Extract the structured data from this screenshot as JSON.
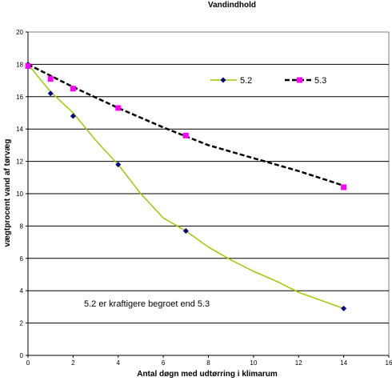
{
  "chart_data": {
    "type": "line",
    "title": "Vandindhold",
    "xlabel": "Antal døgn med udtørring i klimarum",
    "ylabel": "vægtprocent vand af tørvæg",
    "xlim": [
      0,
      16
    ],
    "ylim": [
      0,
      20
    ],
    "xticks": [
      0,
      2,
      4,
      6,
      8,
      10,
      12,
      14,
      16
    ],
    "yticks": [
      0,
      2,
      4,
      6,
      8,
      10,
      12,
      14,
      16,
      18,
      20
    ],
    "grid": "horizontal",
    "legend_position": "top-right",
    "series": [
      {
        "name": "5.2",
        "color": "#99cc00",
        "marker": "diamond",
        "marker_color": "#000080",
        "line_style": "solid",
        "points": [
          [
            0,
            18.0
          ],
          [
            1,
            16.2
          ],
          [
            2,
            14.8
          ],
          [
            4,
            11.8
          ],
          [
            7,
            7.7
          ],
          [
            14,
            2.9
          ]
        ],
        "trend": [
          [
            0,
            18.0
          ],
          [
            1,
            16.3
          ],
          [
            2,
            15.0
          ],
          [
            3,
            13.3
          ],
          [
            4,
            11.8
          ],
          [
            5,
            10.0
          ],
          [
            6,
            8.5
          ],
          [
            7,
            7.7
          ],
          [
            8,
            6.7
          ],
          [
            9,
            5.9
          ],
          [
            10,
            5.2
          ],
          [
            11,
            4.6
          ],
          [
            12,
            3.9
          ],
          [
            13,
            3.4
          ],
          [
            14,
            2.9
          ]
        ]
      },
      {
        "name": "5.3",
        "color": "#000000",
        "marker": "square",
        "marker_color": "#ff00ff",
        "line_style": "dashed",
        "points": [
          [
            0,
            17.9
          ],
          [
            1,
            17.1
          ],
          [
            2,
            16.5
          ],
          [
            4,
            15.3
          ],
          [
            7,
            13.6
          ],
          [
            14,
            10.4
          ]
        ],
        "trend": [
          [
            0,
            18.0
          ],
          [
            2,
            16.6
          ],
          [
            4,
            15.3
          ],
          [
            6,
            14.1
          ],
          [
            8,
            13.0
          ],
          [
            10,
            12.2
          ],
          [
            12,
            11.4
          ],
          [
            14,
            10.5
          ]
        ]
      }
    ],
    "annotation": "5.2 er kraftigere begroet end 5.3"
  }
}
